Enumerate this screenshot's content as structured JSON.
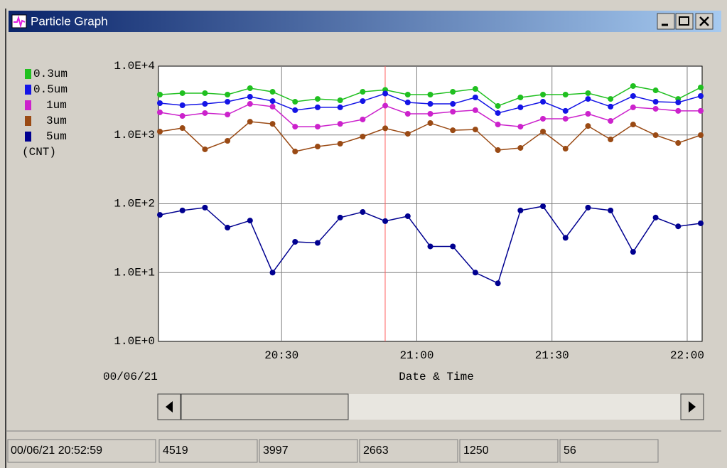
{
  "window": {
    "title": "Particle Graph"
  },
  "chart_data": {
    "type": "line",
    "log_y": true,
    "grid": true,
    "date": "00/06/21",
    "x_label": "Date & Time",
    "x": [
      "20:03",
      "20:08",
      "20:13",
      "20:18",
      "20:23",
      "20:28",
      "20:33",
      "20:38",
      "20:43",
      "20:48",
      "20:53",
      "20:58",
      "21:03",
      "21:08",
      "21:13",
      "21:18",
      "21:23",
      "21:28",
      "21:33",
      "21:38",
      "21:43",
      "21:48",
      "21:53",
      "21:58",
      "22:03"
    ],
    "xlim": [
      "20:03",
      "22:03"
    ],
    "xticks": [
      "20:30",
      "21:00",
      "21:30",
      "22:00"
    ],
    "ylim": [
      1,
      10000
    ],
    "yticks": [
      {
        "value": 1,
        "label": "1.0E+0"
      },
      {
        "value": 10,
        "label": "1.0E+1"
      },
      {
        "value": 100,
        "label": "1.0E+2"
      },
      {
        "value": 1000,
        "label": "1.0E+3"
      },
      {
        "value": 10000,
        "label": "1.0E+4"
      }
    ],
    "unit": "(CNT)",
    "cursor": "20:52:59",
    "cursor_color": "#ff6060",
    "series": [
      {
        "name": "0.3um",
        "color": "#20c020",
        "values": [
          3860,
          4050,
          4050,
          3860,
          4780,
          4240,
          3040,
          3340,
          3190,
          4240,
          4519,
          3860,
          3860,
          4240,
          4670,
          2640,
          3510,
          3860,
          3860,
          4050,
          3340,
          5140,
          4450,
          3340,
          4900
        ]
      },
      {
        "name": "0.5um",
        "color": "#1414e6",
        "values": [
          2900,
          2700,
          2830,
          3040,
          3590,
          3110,
          2290,
          2520,
          2520,
          3110,
          3997,
          2970,
          2830,
          2830,
          3510,
          2080,
          2520,
          3040,
          2240,
          3340,
          2580,
          3680,
          3040,
          2970,
          3680
        ]
      },
      {
        "name": "1um",
        "color": "#cc22cc",
        "values": [
          2130,
          1890,
          2080,
          1980,
          2830,
          2580,
          1320,
          1320,
          1450,
          1680,
          2663,
          2030,
          2030,
          2180,
          2290,
          1420,
          1320,
          1720,
          1720,
          2030,
          1600,
          2520,
          2400,
          2240,
          2240
        ]
      },
      {
        "name": "3um",
        "color": "#9a4a14",
        "values": [
          1120,
          1260,
          618,
          822,
          1560,
          1450,
          575,
          679,
          747,
          948,
          1250,
          1040,
          1490,
          1170,
          1200,
          603,
          648,
          1120,
          632,
          1350,
          862,
          1420,
          994,
          765,
          994
        ]
      },
      {
        "name": "5um",
        "color": "#000090",
        "values": [
          69,
          80,
          88,
          45,
          57,
          10,
          28,
          27,
          63,
          76,
          56,
          66,
          24,
          24,
          10,
          7,
          80,
          92,
          32,
          88,
          80,
          20,
          63,
          47,
          52
        ]
      }
    ]
  },
  "status": {
    "time": "00/06/21 20:52:59"
  }
}
